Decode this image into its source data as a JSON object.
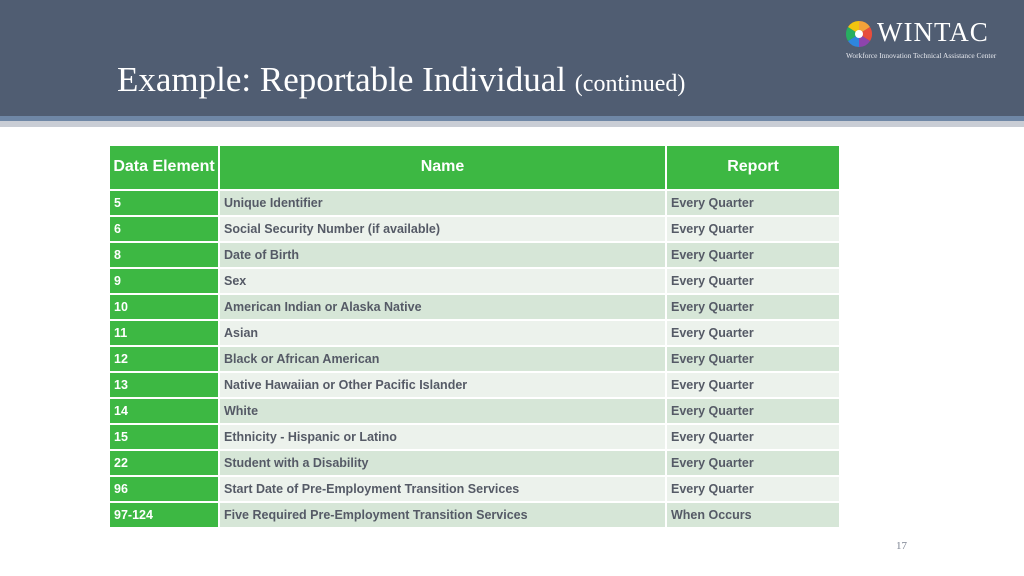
{
  "slide": {
    "title_main": "Example: Reportable Individual",
    "title_sub": "(continued)",
    "page_number": "17"
  },
  "logo": {
    "name": "WINTAC",
    "tagline": "Workforce Innovation Technical Assistance Center"
  },
  "table": {
    "headers": [
      "Data Element",
      "Name",
      "Report"
    ],
    "rows": [
      {
        "element": "5",
        "name": "Unique Identifier",
        "report": "Every Quarter"
      },
      {
        "element": "6",
        "name": "Social Security Number (if available)",
        "report": "Every Quarter"
      },
      {
        "element": "8",
        "name": "Date of Birth",
        "report": "Every Quarter"
      },
      {
        "element": "9",
        "name": "Sex",
        "report": "Every Quarter"
      },
      {
        "element": "10",
        "name": "American Indian or Alaska Native",
        "report": "Every Quarter"
      },
      {
        "element": "11",
        "name": "Asian",
        "report": "Every Quarter"
      },
      {
        "element": "12",
        "name": "Black or African American",
        "report": "Every Quarter"
      },
      {
        "element": "13",
        "name": "Native Hawaiian or Other Pacific Islander",
        "report": "Every Quarter"
      },
      {
        "element": "14",
        "name": "White",
        "report": "Every Quarter"
      },
      {
        "element": "15",
        "name": "Ethnicity - Hispanic or Latino",
        "report": "Every Quarter"
      },
      {
        "element": "22",
        "name": "Student with a Disability",
        "report": "Every Quarter"
      },
      {
        "element": "96",
        "name": "Start Date of Pre-Employment Transition Services",
        "report": "Every Quarter"
      },
      {
        "element": "97-124",
        "name": "Five Required Pre-Employment Transition Services",
        "report": "When Occurs"
      }
    ]
  },
  "colors": {
    "header_band": "#505d72",
    "table_green": "#3db843",
    "row_light_green": "#d6e6d7",
    "row_lighter_green": "#ecf2ec"
  }
}
